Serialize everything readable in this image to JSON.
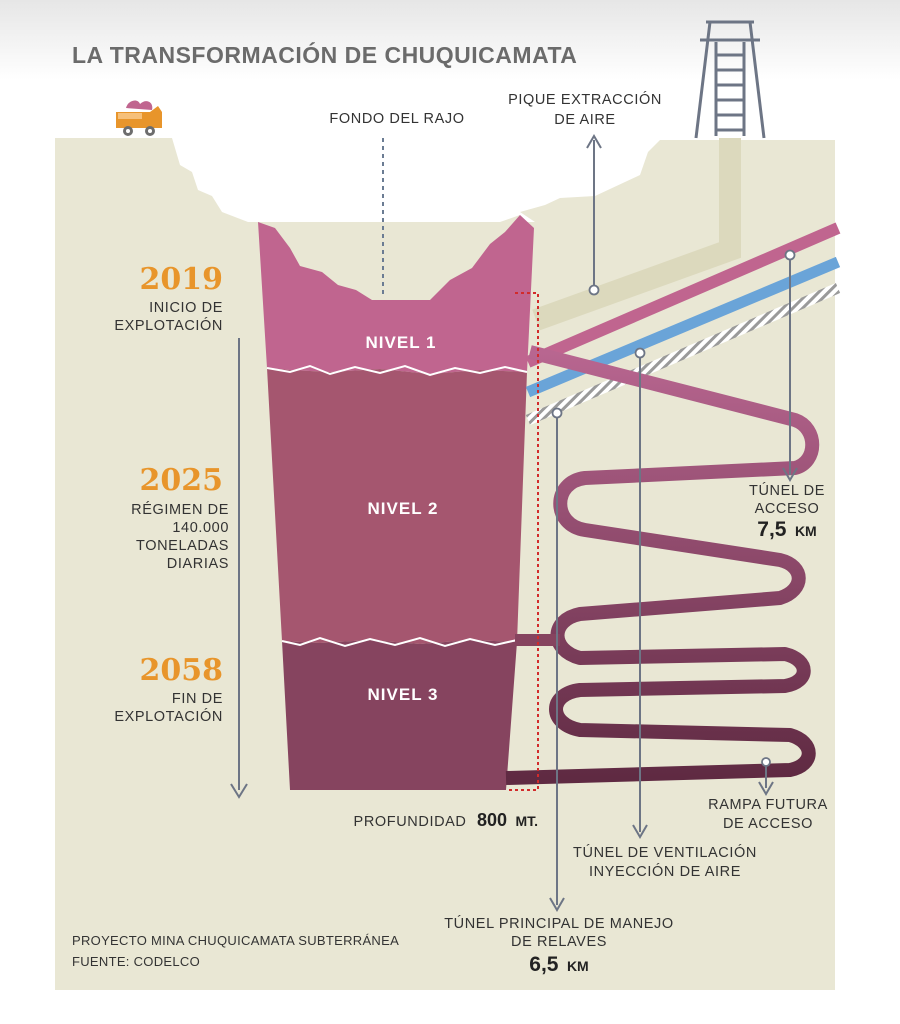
{
  "title": "LA TRANSFORMACIÓN DE CHUQUICAMATA",
  "labels": {
    "fondo_rajo": "FONDO DEL RAJO",
    "pique_line1": "PIQUE EXTRACCIÓN",
    "pique_line2": "DE AIRE",
    "nivel1": "NIVEL 1",
    "nivel2": "NIVEL 2",
    "nivel3": "NIVEL 3",
    "profundidad_label": "PROFUNDIDAD",
    "profundidad_value": "800",
    "profundidad_unit": "MT.",
    "tunel_acceso_line1": "TÚNEL DE",
    "tunel_acceso_line2": "ACCESO",
    "tunel_acceso_value": "7,5",
    "tunel_acceso_unit": "KM",
    "rampa_line1": "RAMPA FUTURA",
    "rampa_line2": "DE ACCESO",
    "ventilacion_line1": "TÚNEL DE VENTILACIÓN",
    "ventilacion_line2": "INYECCIÓN DE AIRE",
    "relaves_line1": "TÚNEL PRINCIPAL DE MANEJO",
    "relaves_line2": "DE RELAVES",
    "relaves_value": "6,5",
    "relaves_unit": "KM"
  },
  "timeline": [
    {
      "year": "2019",
      "lines": [
        "INICIO DE",
        "EXPLOTACIÓN"
      ]
    },
    {
      "year": "2025",
      "lines": [
        "RÉGIMEN DE",
        "140.000",
        "TONELADAS",
        "DIARIAS"
      ]
    },
    {
      "year": "2058",
      "lines": [
        "FIN DE",
        "EXPLOTACIÓN"
      ]
    }
  ],
  "footer": {
    "project": "PROYECTO MINA CHUQUICAMATA SUBTERRÁNEA",
    "source": "FUENTE: CODELCO"
  },
  "colors": {
    "ground": "#e9e7d4",
    "nivel1": "#c0658f",
    "nivel2": "#a5566f",
    "nivel3": "#86445f",
    "access_tunnel": "#c0658f",
    "ventilation_tunnel": "#6aa4d8",
    "year_accent": "#e8952b",
    "pique": "#dcd9bd"
  },
  "icons": [
    "truck-icon",
    "headframe-tower-icon"
  ]
}
